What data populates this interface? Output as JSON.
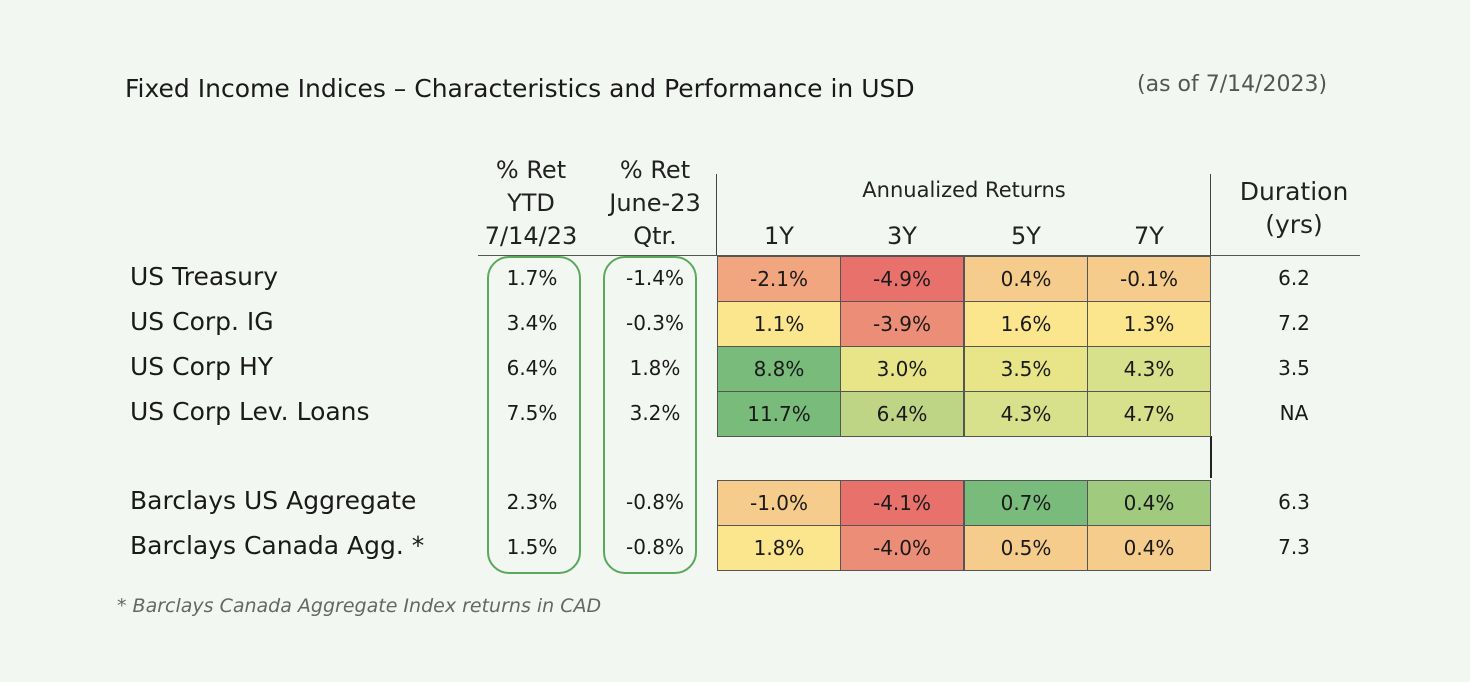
{
  "title": "Fixed Income Indices – Characteristics and Performance in USD",
  "as_of": "(as of 7/14/2023)",
  "footnote": "* Barclays Canada Aggregate Index returns in CAD",
  "headers": {
    "ret_ytd": [
      "% Ret",
      "YTD",
      "7/14/23"
    ],
    "ret_qtr": [
      "% Ret",
      "June-23",
      "Qtr."
    ],
    "annualized": "Annualized Returns",
    "periods": [
      "1Y",
      "3Y",
      "5Y",
      "7Y"
    ],
    "duration": [
      "Duration",
      "(yrs)"
    ]
  },
  "colors": {
    "background": "#f3f7f2",
    "highlight_outline": "#5aa85c",
    "scale": {
      "deep_red": "#e8716b",
      "red": "#ec8d77",
      "orange": "#f2a67f",
      "light_orange": "#f6cc8c",
      "light_yellow": "#f9de8b",
      "yellow": "#fbe68e",
      "yellow_green": "#e7e587",
      "light_green": "#d7e08b",
      "green": "#bdd585",
      "mid_green": "#a0cb7f",
      "dark_green": "#78bb7b"
    }
  },
  "chart_data": {
    "type": "table",
    "title": "Fixed Income Indices – Characteristics and Performance in USD",
    "columns": [
      "% Ret YTD 7/14/23",
      "% Ret June-23 Qtr.",
      "1Y",
      "3Y",
      "5Y",
      "7Y",
      "Duration (yrs)"
    ],
    "rows": [
      {
        "name": "US Treasury",
        "ytd": "1.7%",
        "qtr": "-1.4%",
        "ann": [
          "-2.1%",
          "-4.9%",
          "0.4%",
          "-0.1%"
        ],
        "ann_colors": [
          "orange",
          "deep_red",
          "light_orange",
          "light_orange"
        ],
        "duration": "6.2"
      },
      {
        "name": "US Corp. IG",
        "ytd": "3.4%",
        "qtr": "-0.3%",
        "ann": [
          "1.1%",
          "-3.9%",
          "1.6%",
          "1.3%"
        ],
        "ann_colors": [
          "yellow",
          "red",
          "yellow",
          "yellow"
        ],
        "duration": "7.2"
      },
      {
        "name": "US Corp HY",
        "ytd": "6.4%",
        "qtr": "1.8%",
        "ann": [
          "8.8%",
          "3.0%",
          "3.5%",
          "4.3%"
        ],
        "ann_colors": [
          "dark_green",
          "yellow_green",
          "yellow_green",
          "light_green"
        ],
        "duration": "3.5"
      },
      {
        "name": "US Corp Lev. Loans",
        "ytd": "7.5%",
        "qtr": "3.2%",
        "ann": [
          "11.7%",
          "6.4%",
          "4.3%",
          "4.7%"
        ],
        "ann_colors": [
          "dark_green",
          "green",
          "light_green",
          "light_green"
        ],
        "duration": "NA"
      },
      {
        "name": "Barclays US Aggregate",
        "ytd": "2.3%",
        "qtr": "-0.8%",
        "ann": [
          "-1.0%",
          "-4.1%",
          "0.7%",
          "0.4%"
        ],
        "ann_colors": [
          "light_orange",
          "deep_red",
          "dark_green",
          "mid_green"
        ],
        "duration": "6.3"
      },
      {
        "name": "Barclays Canada Agg. *",
        "ytd": "1.5%",
        "qtr": "-0.8%",
        "ann": [
          "1.8%",
          "-4.0%",
          "0.5%",
          "0.4%"
        ],
        "ann_colors": [
          "yellow",
          "red",
          "light_orange",
          "light_orange"
        ],
        "duration": "7.3"
      }
    ]
  }
}
